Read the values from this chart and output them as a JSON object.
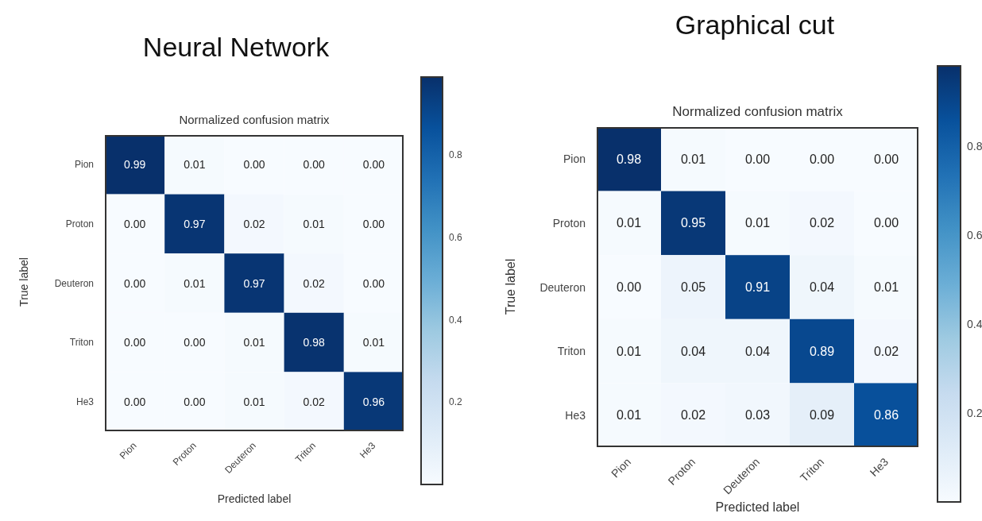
{
  "chart_data": [
    {
      "type": "heatmap",
      "title": "Neural Network",
      "subtitle": "Normalized confusion matrix",
      "xlabel": "Predicted label",
      "ylabel": "True label",
      "categories": [
        "Pion",
        "Proton",
        "Deuteron",
        "Triton",
        "He3"
      ],
      "y_categories": [
        "Pion",
        "Proton",
        "Deuteron",
        "Triton",
        "He3"
      ],
      "cells": [
        [
          0.99,
          0.01,
          0.0,
          0.0,
          0.0
        ],
        [
          0.0,
          0.97,
          0.02,
          0.01,
          0.0
        ],
        [
          0.0,
          0.01,
          0.97,
          0.02,
          0.0
        ],
        [
          0.0,
          0.0,
          0.01,
          0.98,
          0.01
        ],
        [
          0.0,
          0.0,
          0.01,
          0.02,
          0.96
        ]
      ],
      "cell_labels": [
        [
          "0.99",
          "0.01",
          "0.00",
          "0.00",
          "0.00"
        ],
        [
          "0.00",
          "0.97",
          "0.02",
          "0.01",
          "0.00"
        ],
        [
          "0.00",
          "0.01",
          "0.97",
          "0.02",
          "0.00"
        ],
        [
          "0.00",
          "0.00",
          "0.01",
          "0.98",
          "0.01"
        ],
        [
          "0.00",
          "0.00",
          "0.01",
          "0.02",
          "0.96"
        ]
      ],
      "clim": [
        0,
        0.99
      ],
      "cticks": [
        0.2,
        0.4,
        0.6,
        0.8
      ]
    },
    {
      "type": "heatmap",
      "title": "Graphical cut",
      "subtitle": "Normalized confusion matrix",
      "xlabel": "Predicted label",
      "ylabel": "True label",
      "categories": [
        "Pion",
        "Proton",
        "Deuteron",
        "Triton",
        "He3"
      ],
      "y_categories": [
        "Pion",
        "Proton",
        "Deuteron",
        "Triton",
        "He3"
      ],
      "cells": [
        [
          0.98,
          0.01,
          0.0,
          0.0,
          0.0
        ],
        [
          0.01,
          0.95,
          0.01,
          0.02,
          0.0
        ],
        [
          0.0,
          0.05,
          0.91,
          0.04,
          0.01
        ],
        [
          0.01,
          0.04,
          0.04,
          0.89,
          0.02
        ],
        [
          0.01,
          0.02,
          0.03,
          0.09,
          0.86
        ]
      ],
      "cell_labels": [
        [
          "0.98",
          "0.01",
          "0.00",
          "0.00",
          "0.00"
        ],
        [
          "0.01",
          "0.95",
          "0.01",
          "0.02",
          "0.00"
        ],
        [
          "0.00",
          "0.05",
          "0.91",
          "0.04",
          "0.01"
        ],
        [
          "0.01",
          "0.04",
          "0.04",
          "0.89",
          "0.02"
        ],
        [
          "0.01",
          "0.02",
          "0.03",
          "0.09",
          "0.86"
        ]
      ],
      "clim": [
        0,
        0.98
      ],
      "cticks": [
        0.2,
        0.4,
        0.6,
        0.8
      ]
    }
  ]
}
